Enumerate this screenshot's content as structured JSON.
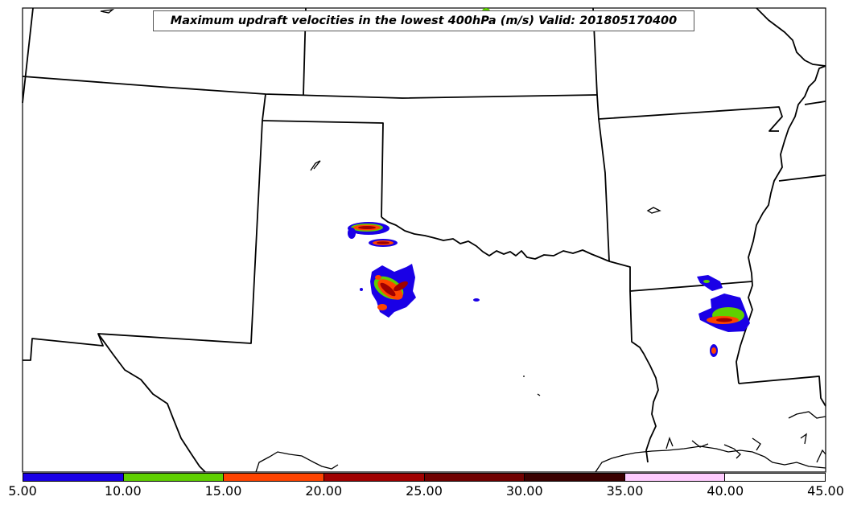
{
  "title": "Maximum updraft velocities in the lowest 400hPa (m/s) Valid: 201805170400",
  "colorbar": {
    "ticks": [
      "5.00",
      "10.00",
      "15.00",
      "20.00",
      "25.00",
      "30.00",
      "35.00",
      "40.00",
      "45.00"
    ],
    "colors": [
      "#1a00e6",
      "#5fd000",
      "#ff4400",
      "#a00000",
      "#700000",
      "#3a0000",
      "#ffccff",
      "#ffffff"
    ]
  },
  "palette": {
    "blue": "#1a00e6",
    "green": "#5fd000",
    "orange": "#ff4400",
    "red": "#a00000"
  }
}
